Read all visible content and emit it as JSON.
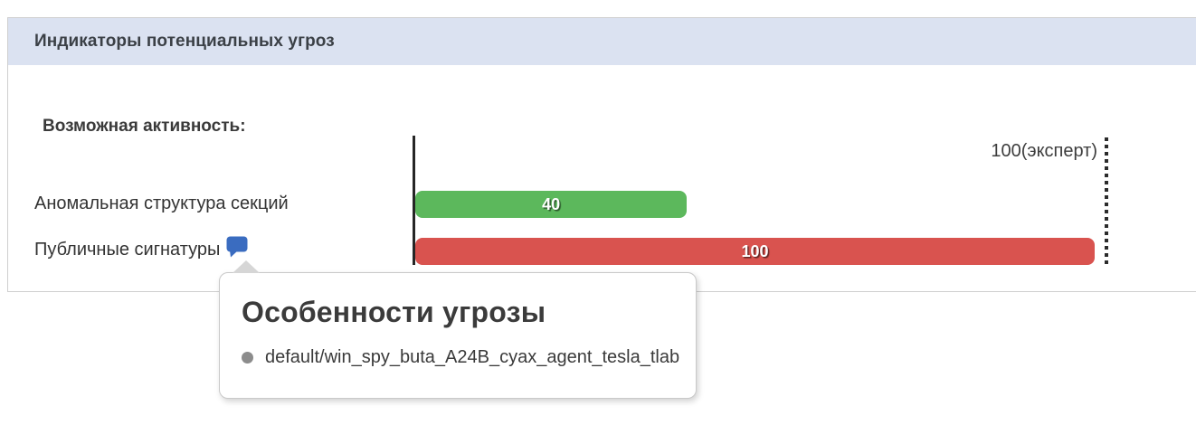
{
  "panel": {
    "title": "Индикаторы потенциальных угроз",
    "section_label": "Возможная активность:"
  },
  "chart_data": {
    "type": "bar",
    "orientation": "horizontal",
    "title": "Возможная активность:",
    "categories": [
      "Аномальная структура секций",
      "Публичные сигнатуры"
    ],
    "values": [
      40,
      100
    ],
    "max_value": 100,
    "max_label": "100(эксперт)",
    "xlim": [
      0,
      100
    ],
    "grid": false,
    "rows": [
      {
        "label": "Аномальная структура секций",
        "value": 40,
        "color": "#5cb85c",
        "has_comment": false
      },
      {
        "label": "Публичные сигнатуры",
        "value": 100,
        "color": "#d9534f",
        "has_comment": true
      }
    ]
  },
  "tooltip": {
    "title": "Особенности угрозы",
    "items": [
      "default/win_spy_buta_A24B_cyax_agent_tesla_tlab"
    ]
  },
  "colors": {
    "header_bg": "#dbe2f1",
    "bar_green": "#5cb85c",
    "bar_red": "#d9534f",
    "comment_icon_blue": "#3a6cc0",
    "axis": "#262626",
    "bullet_gray": "#8c8c8c"
  }
}
